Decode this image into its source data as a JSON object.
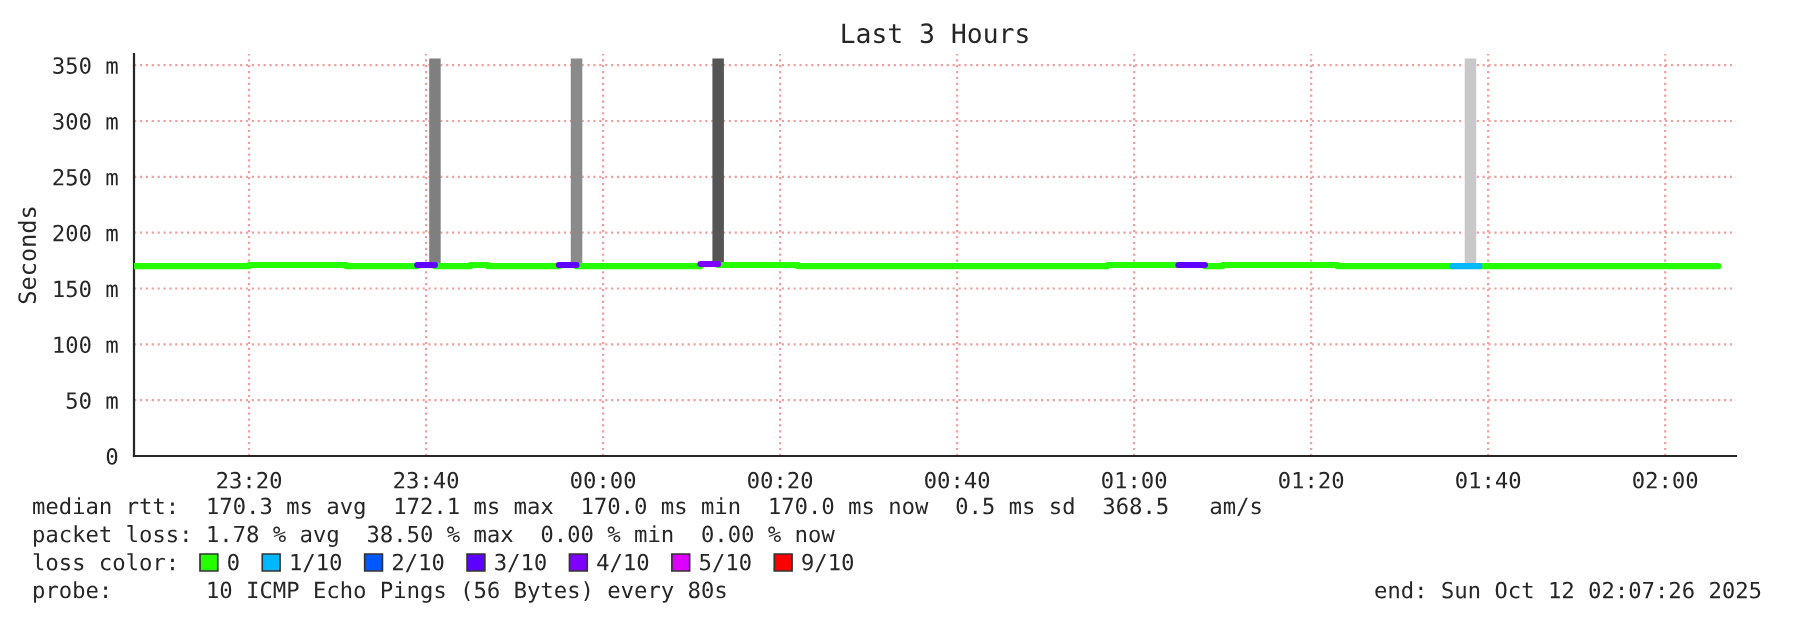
{
  "chart_data": {
    "type": "step",
    "title": "Last 3 Hours",
    "ylabel": "Seconds",
    "legend_title": "loss color:",
    "xlim": [
      "2025-10-11T23:07",
      "2025-10-12T02:08"
    ],
    "xticks": [
      {
        "value": "2025-10-11T23:20",
        "label": "23:20"
      },
      {
        "value": "2025-10-11T23:40",
        "label": "23:40"
      },
      {
        "value": "2025-10-12T00:00",
        "label": "00:00"
      },
      {
        "value": "2025-10-12T00:20",
        "label": "00:20"
      },
      {
        "value": "2025-10-12T00:40",
        "label": "00:40"
      },
      {
        "value": "2025-10-12T01:00",
        "label": "01:00"
      },
      {
        "value": "2025-10-12T01:20",
        "label": "01:20"
      },
      {
        "value": "2025-10-12T01:40",
        "label": "01:40"
      },
      {
        "value": "2025-10-12T02:00",
        "label": "02:00"
      }
    ],
    "ylim": [
      0,
      360
    ],
    "yticks": [
      0,
      {
        "value": 50,
        "label": "50 m"
      },
      {
        "value": 100,
        "label": "100 m"
      },
      {
        "value": 150,
        "label": "150 m"
      },
      {
        "value": 200,
        "label": "200 m"
      },
      {
        "value": 250,
        "label": "250 m"
      },
      {
        "value": 300,
        "label": "300 m"
      },
      {
        "value": 350,
        "label": "350 m"
      }
    ],
    "grid": true,
    "legend": "bottom",
    "series": [
      {
        "type": "bar",
        "x": [
          "2025-10-11T23:41",
          "2025-10-11T23:57",
          "2025-10-12T00:13",
          "2025-10-12T01:38"
        ],
        "base": [
          171,
          171,
          171,
          171
        ],
        "values": [
          185,
          185,
          185,
          185
        ],
        "colors": [
          "#7f7f7f",
          "#8a8a8a",
          "#555555",
          "#c8c8c8"
        ]
      },
      {
        "name": "0",
        "color": "#26ff00",
        "x": [
          "2025-10-11T23:07",
          "2025-10-11T23:20",
          "2025-10-11T23:31",
          "2025-10-11T23:39",
          "2025-10-11T23:41",
          "2025-10-11T23:45",
          "2025-10-11T23:47",
          "2025-10-11T23:55",
          "2025-10-11T23:57",
          "2025-10-12T00:11",
          "2025-10-12T00:13",
          "2025-10-12T00:22",
          "2025-10-12T00:57",
          "2025-10-12T01:05",
          "2025-10-12T01:08",
          "2025-10-12T01:10",
          "2025-10-12T01:23",
          "2025-10-12T01:36",
          "2025-10-12T01:39",
          "2025-10-12T02:06"
        ],
        "values": [
          170,
          171,
          170,
          null,
          170,
          171,
          170,
          null,
          170,
          null,
          171,
          170,
          171,
          null,
          170,
          171,
          170,
          null,
          170,
          170
        ]
      },
      {
        "type": "line",
        "name": "1/10",
        "color": "#00b8ff",
        "x": [
          "2025-10-12T01:36",
          "2025-10-12T01:39"
        ],
        "values": [
          170,
          170
        ]
      },
      {
        "name": "2/10",
        "color": "#0059ff"
      },
      {
        "type": "line",
        "name": "3/10",
        "color": "#5e00ff",
        "x": [
          "2025-10-11T23:39",
          "2025-10-11T23:41",
          "2025-10-11T23:48",
          "2025-10-11T23:55",
          "2025-10-11T23:57",
          "2025-10-12T00:30",
          "2025-10-12T01:05",
          "2025-10-12T01:08"
        ],
        "values": [
          171,
          171,
          null,
          171,
          171,
          null,
          171,
          171
        ]
      },
      {
        "type": "line",
        "name": "4/10",
        "color": "#7e00ff",
        "x": [
          "2025-10-12T00:11",
          "2025-10-12T00:13"
        ],
        "values": [
          172,
          172
        ]
      },
      {
        "name": "5/10",
        "color": "#dd00ff"
      },
      {
        "name": "9/10",
        "color": "#ff0000"
      }
    ],
    "annotations": [
      "median rtt:  170.3 ms avg  172.1 ms max  170.0 ms min  170.0 ms now  0.5 ms sd  368.5   am/s",
      "packet loss: 1.78 % avg  38.50 % max  0.00 % min  0.00 % now",
      "probe:       10 ICMP Echo Pings (56 Bytes) every 80s",
      "end: Sun Oct 12 02:07:26 2025"
    ]
  }
}
